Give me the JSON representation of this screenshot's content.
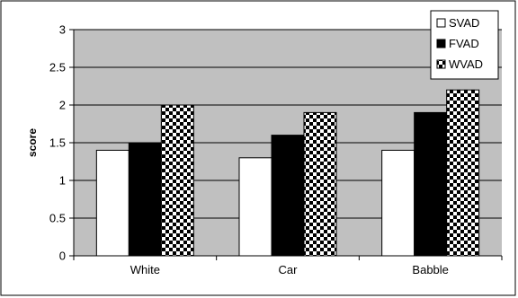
{
  "chart_data": {
    "type": "bar",
    "title": "",
    "xlabel": "",
    "ylabel": "score",
    "ylim": [
      0,
      3
    ],
    "yticks": [
      "0",
      "0.5",
      "1",
      "1.5",
      "2",
      "2.5",
      "3"
    ],
    "grid": true,
    "legend_position": "top-right",
    "categories": [
      "White",
      "Car",
      "Babble"
    ],
    "series": [
      {
        "name": "SVAD",
        "values": [
          1.4,
          1.3,
          1.4
        ],
        "fill": "white"
      },
      {
        "name": "FVAD",
        "values": [
          1.5,
          1.6,
          1.9
        ],
        "fill": "black"
      },
      {
        "name": "WVAD",
        "values": [
          2.0,
          1.9,
          2.2
        ],
        "fill": "checker"
      }
    ],
    "colors": {
      "plot_background": "#c0c0c0",
      "gridline": "#000000",
      "bar_outline": "#000000"
    }
  }
}
